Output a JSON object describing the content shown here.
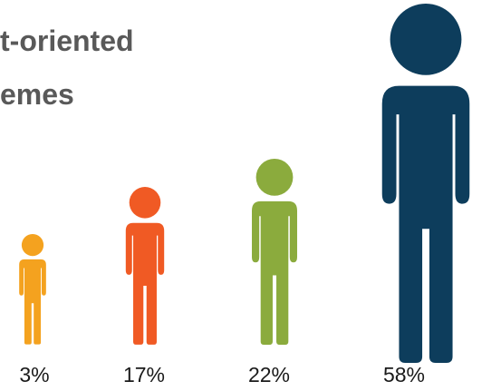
{
  "title": {
    "line1": "t-oriented",
    "line2": "emes"
  },
  "chart_data": {
    "type": "pictograph",
    "title": "t-oriented emes",
    "categories": [
      "",
      "",
      "",
      ""
    ],
    "values": [
      3,
      17,
      22,
      58
    ],
    "labels": [
      "3%",
      "17%",
      "22%",
      "58%"
    ],
    "unit": "%",
    "colors": [
      "#f4a21f",
      "#f05a24",
      "#8bab3d",
      "#0d3d5c"
    ],
    "icon": "person-icon"
  }
}
